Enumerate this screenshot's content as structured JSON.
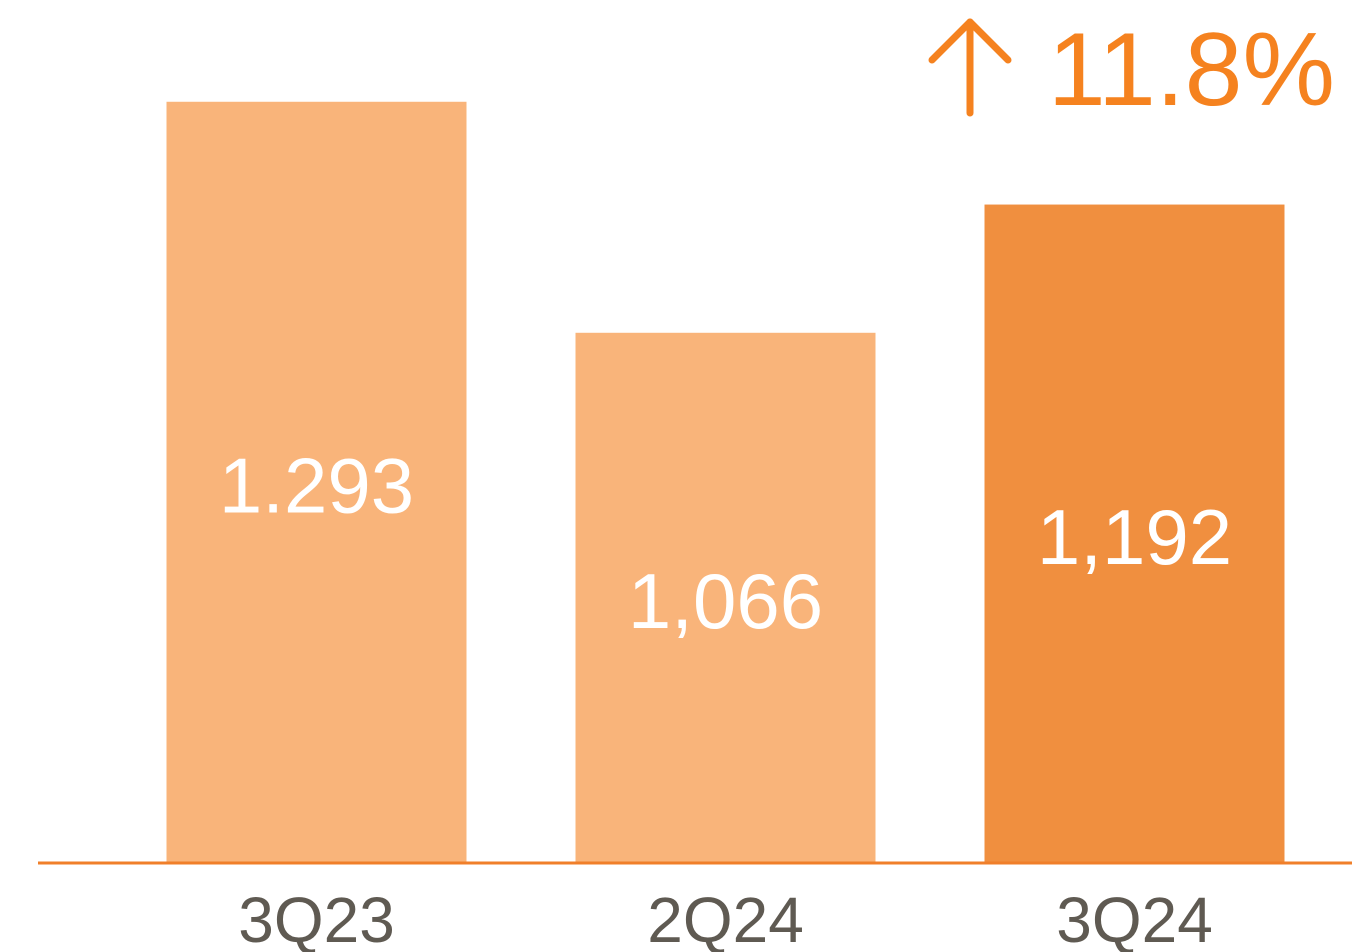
{
  "chart_data": {
    "type": "bar",
    "categories": [
      "3Q23",
      "2Q24",
      "3Q24"
    ],
    "values": [
      1293,
      1066,
      1192
    ],
    "value_labels": [
      "1.293",
      "1,066",
      "1,192"
    ],
    "colors": [
      "#f9b47a",
      "#f9b47a",
      "#f08f3f"
    ],
    "ylim": [
      545,
      1393
    ],
    "annotations": [
      "11.8%"
    ]
  }
}
